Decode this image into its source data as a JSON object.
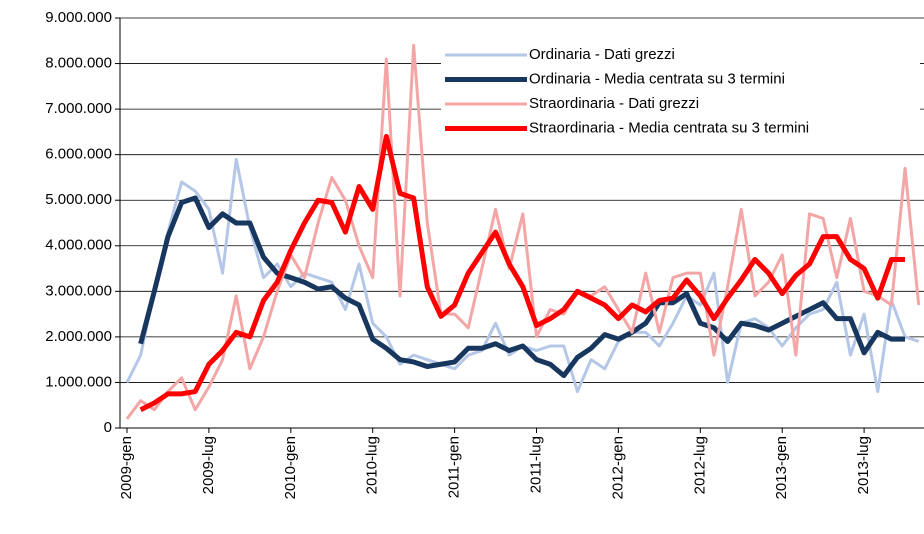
{
  "chart_data": {
    "type": "line",
    "categories": [
      "2009-gen",
      null,
      null,
      null,
      null,
      null,
      "2009-lug",
      null,
      null,
      null,
      null,
      null,
      "2010-gen",
      null,
      null,
      null,
      null,
      null,
      "2010-lug",
      null,
      null,
      null,
      null,
      null,
      "2011-gen",
      null,
      null,
      null,
      null,
      null,
      "2011-lug",
      null,
      null,
      null,
      null,
      null,
      "2012-gen",
      null,
      null,
      null,
      null,
      null,
      "2012-lug",
      null,
      null,
      null,
      null,
      null,
      "2013-gen",
      null,
      null,
      null,
      null,
      null,
      "2013-lug",
      null,
      null,
      null,
      null
    ],
    "series": [
      {
        "name": "Ordinaria - Dati grezzi",
        "color": "#b4c7e7",
        "width": 3,
        "values": [
          1000000,
          1600000,
          3000000,
          4300000,
          5400000,
          5200000,
          4800000,
          3400000,
          5900000,
          4400000,
          3300000,
          3600000,
          3100000,
          3400000,
          3300000,
          3200000,
          2600000,
          3600000,
          2300000,
          2000000,
          1400000,
          1600000,
          1500000,
          1400000,
          1300000,
          1600000,
          1700000,
          2300000,
          1600000,
          1800000,
          1700000,
          1800000,
          1800000,
          800000,
          1500000,
          1300000,
          1900000,
          2100000,
          2100000,
          1800000,
          2300000,
          2900000,
          2700000,
          3400000,
          1000000,
          2300000,
          2400000,
          2200000,
          1800000,
          2200000,
          2500000,
          2600000,
          3200000,
          1600000,
          2500000,
          800000,
          2800000,
          2000000,
          1900000
        ]
      },
      {
        "name": "Ordinaria - Media centrata su 3 termini",
        "color": "#17375e",
        "width": 5,
        "values": [
          null,
          1850000,
          3000000,
          4200000,
          4950000,
          5050000,
          4400000,
          4700000,
          4500000,
          4500000,
          3750000,
          3400000,
          3300000,
          3200000,
          3050000,
          3100000,
          2850000,
          2700000,
          1950000,
          1750000,
          1500000,
          1450000,
          1350000,
          1400000,
          1450000,
          1750000,
          1750000,
          1850000,
          1700000,
          1800000,
          1500000,
          1400000,
          1150000,
          1550000,
          1750000,
          2050000,
          1950000,
          2100000,
          2300000,
          2750000,
          2750000,
          2950000,
          2300000,
          2200000,
          1900000,
          2300000,
          2250000,
          2150000,
          2300000,
          2450000,
          2600000,
          2750000,
          2400000,
          2400000,
          1650000,
          2100000,
          1950000,
          1950000,
          null
        ]
      },
      {
        "name": "Straordinaria - Dati grezzi",
        "color": "#f4a6a6",
        "width": 3,
        "values": [
          200000,
          600000,
          400000,
          800000,
          1100000,
          400000,
          900000,
          1500000,
          2900000,
          1300000,
          2000000,
          3000000,
          3800000,
          3300000,
          4500000,
          5500000,
          5000000,
          4000000,
          3300000,
          8100000,
          2900000,
          8400000,
          4500000,
          2500000,
          2500000,
          2200000,
          3500000,
          4800000,
          3500000,
          4700000,
          2000000,
          2600000,
          2500000,
          3000000,
          2900000,
          3100000,
          2600000,
          2100000,
          3400000,
          2100000,
          3300000,
          3400000,
          3400000,
          1600000,
          3100000,
          4800000,
          2900000,
          3200000,
          3800000,
          1600000,
          4700000,
          4600000,
          3300000,
          4600000,
          3000000,
          2900000,
          2700000,
          5700000,
          2700000
        ]
      },
      {
        "name": "Straordinaria - Media centrata su 3 termini",
        "color": "#ff0000",
        "width": 5,
        "values": [
          null,
          400000,
          550000,
          750000,
          750000,
          800000,
          1400000,
          1700000,
          2100000,
          2000000,
          2800000,
          3200000,
          3900000,
          4500000,
          5000000,
          4950000,
          4300000,
          5300000,
          4800000,
          6400000,
          5150000,
          5050000,
          3100000,
          2450000,
          2700000,
          3400000,
          3850000,
          4300000,
          3600000,
          3100000,
          2250000,
          2400000,
          2600000,
          3000000,
          2850000,
          2700000,
          2400000,
          2700000,
          2550000,
          2800000,
          2850000,
          3250000,
          2900000,
          2400000,
          2850000,
          3250000,
          3700000,
          3400000,
          2950000,
          3350000,
          3600000,
          4200000,
          4200000,
          3700000,
          3500000,
          2850000,
          3700000,
          3700000,
          null
        ]
      }
    ],
    "ylim": [
      0,
      9000000
    ],
    "yticks": [
      0,
      {
        "value": 1000000,
        "label": "1.000.000"
      },
      {
        "value": 2000000,
        "label": "2.000.000"
      },
      {
        "value": 3000000,
        "label": "3.000.000"
      },
      {
        "value": 4000000,
        "label": "4.000.000"
      },
      {
        "value": 5000000,
        "label": "5.000.000"
      },
      {
        "value": 6000000,
        "label": "6.000.000"
      },
      {
        "value": 7000000,
        "label": "7.000.000"
      },
      {
        "value": 8000000,
        "label": "8.000.000"
      },
      {
        "value": 9000000,
        "label": "9.000.000"
      }
    ],
    "grid": true,
    "legend": "top-right"
  }
}
